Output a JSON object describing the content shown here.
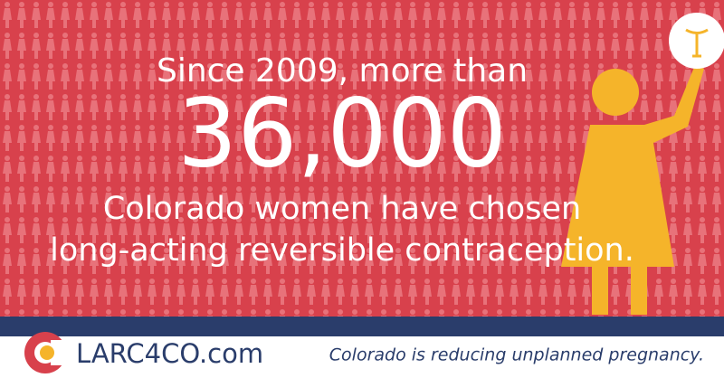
{
  "headline": {
    "lead": "Since 2009, more than",
    "number": "36,000",
    "line1": "Colorado women have chosen",
    "line2": "long-acting reversible contraception."
  },
  "footer": {
    "site": "LARC4CO.com",
    "tagline": "Colorado is reducing unplanned pregnancy."
  }
}
